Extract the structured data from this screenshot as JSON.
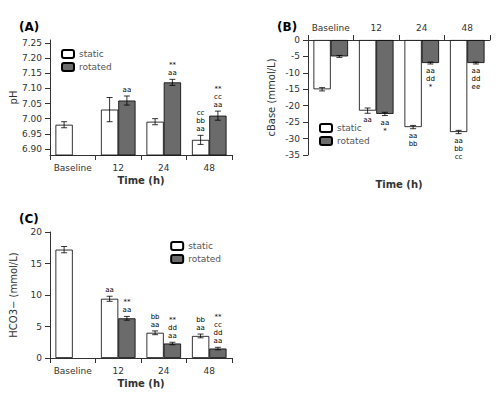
{
  "chart_data": [
    {
      "type": "bar",
      "title": "(A)",
      "x_label": "Time (h)",
      "y_label": "pH",
      "categories": [
        "Baseline",
        "12",
        "24",
        "48"
      ],
      "series": [
        {
          "name": "static",
          "color": "#ffffff",
          "values": [
            6.98,
            7.03,
            6.99,
            6.93
          ],
          "errors": [
            0.01,
            0.04,
            0.01,
            0.015
          ],
          "annotations": [
            null,
            null,
            null,
            "cc\nbb\naa"
          ]
        },
        {
          "name": "rotated",
          "color": "#6b6b6b",
          "values": [
            null,
            7.06,
            7.12,
            7.01
          ],
          "errors": [
            null,
            0.015,
            0.01,
            0.015
          ],
          "annotations": [
            null,
            "aa",
            "**\naa",
            "**\ncc\naa"
          ]
        }
      ],
      "ylim": [
        6.88,
        7.26
      ],
      "yticks": [
        {
          "value": 6.9,
          "label": "6.90"
        },
        {
          "value": 6.95,
          "label": "6.95"
        },
        {
          "value": 7.0,
          "label": "7.00"
        },
        {
          "value": 7.05,
          "label": "7.05"
        },
        {
          "value": 7.1,
          "label": "7.10"
        },
        {
          "value": 7.15,
          "label": "7.15"
        },
        {
          "value": 7.2,
          "label": "7.20"
        },
        {
          "value": 7.25,
          "label": "7.25"
        }
      ],
      "legend": "upper left",
      "grid": false
    },
    {
      "type": "bar",
      "title": "(B)",
      "x_label": "Time (h)",
      "y_label": "cBase (mmol/L)",
      "categories": [
        "Baseline",
        "12",
        "24",
        "48"
      ],
      "series": [
        {
          "name": "static",
          "color": "#ffffff",
          "values": [
            -15.0,
            -21.5,
            -26.5,
            -28.0
          ],
          "errors": [
            0.5,
            0.8,
            0.5,
            0.5
          ],
          "annotations": [
            null,
            "aa",
            "aa\nbb",
            "aa\nbb\ncc"
          ]
        },
        {
          "name": "rotated",
          "color": "#6b6b6b",
          "values": [
            -5.0,
            -22.5,
            -7.0,
            -7.0
          ],
          "errors": [
            0.3,
            0.5,
            0.3,
            0.3
          ],
          "annotations": [
            null,
            "aa\n*",
            "aa\ndd\n*",
            "aa\ndd\nee"
          ]
        }
      ],
      "ylim": [
        -35,
        0
      ],
      "yticks": [
        -35,
        -30,
        -25,
        -20,
        -15,
        -10,
        -5,
        0
      ],
      "legend": "lower left",
      "grid": false
    },
    {
      "type": "bar",
      "title": "(C)",
      "x_label": "Time (h)",
      "y_label": "HCO3− (mmol/L)",
      "categories": [
        "Baseline",
        "12",
        "24",
        "48"
      ],
      "series": [
        {
          "name": "static",
          "color": "#ffffff",
          "values": [
            17.2,
            9.4,
            4.0,
            3.5
          ],
          "errors": [
            0.5,
            0.4,
            0.3,
            0.3
          ],
          "annotations": [
            null,
            "aa",
            "bb\naa",
            "bb\naa"
          ]
        },
        {
          "name": "rotated",
          "color": "#6b6b6b",
          "values": [
            null,
            6.3,
            2.3,
            1.5
          ],
          "errors": [
            null,
            0.3,
            0.2,
            0.2
          ],
          "annotations": [
            null,
            "**\naa",
            "**\ndd\naa",
            "**\ncc\ndd\naa"
          ]
        }
      ],
      "ylim": [
        0,
        20
      ],
      "yticks": [
        0,
        5,
        10,
        15,
        20
      ],
      "legend": "upper right",
      "grid": false
    }
  ]
}
